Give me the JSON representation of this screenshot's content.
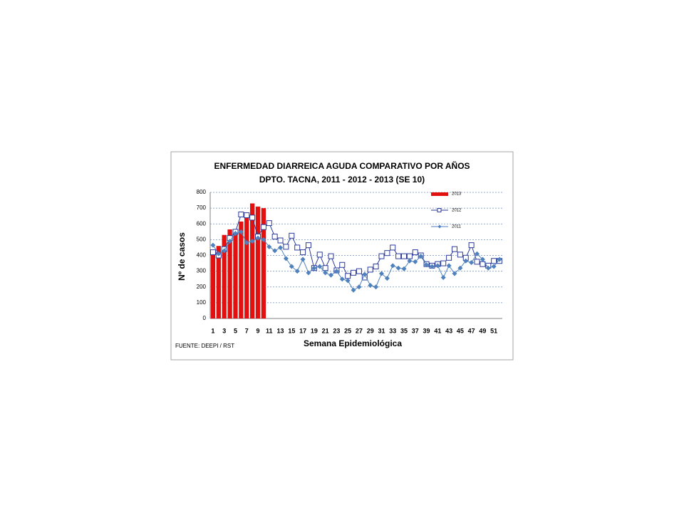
{
  "chart_data": {
    "type": "bar",
    "title": "ENFERMEDAD DIARREICA AGUDA  COMPARATIVO POR  AÑOS",
    "subtitle": "DPTO. TACNA, 2011 - 2012 - 2013 (SE  10)",
    "x_label": "Semana Epidemiológica",
    "y_label": "Nº de casos",
    "source": "FUENTE: DEEPI  / RST",
    "categories": [
      1,
      null,
      3,
      null,
      5,
      null,
      7,
      null,
      9,
      null,
      11,
      null,
      13,
      null,
      15,
      null,
      17,
      null,
      19,
      null,
      21,
      null,
      23,
      null,
      25,
      null,
      27,
      null,
      29,
      null,
      31,
      null,
      33,
      null,
      35,
      null,
      37,
      null,
      39,
      null,
      41,
      null,
      43,
      null,
      45,
      null,
      47,
      null,
      49,
      null,
      51,
      null
    ],
    "ylim": [
      0,
      800
    ],
    "yticks": [
      0,
      100,
      200,
      300,
      400,
      500,
      600,
      700,
      800
    ],
    "grid": true,
    "legend": "top-right",
    "series": [
      {
        "name": "2013",
        "type": "bar",
        "color": "#e31010",
        "values": [
          410,
          460,
          530,
          565,
          545,
          615,
          655,
          730,
          710,
          700,
          null,
          null,
          null,
          null,
          null,
          null,
          null,
          null,
          null,
          null,
          null,
          null,
          null,
          null,
          null,
          null,
          null,
          null,
          null,
          null,
          null,
          null,
          null,
          null,
          null,
          null,
          null,
          null,
          null,
          null,
          null,
          null,
          null,
          null,
          null,
          null,
          null,
          null,
          null,
          null,
          null,
          null
        ]
      },
      {
        "name": "2012",
        "type": "line",
        "marker": "square",
        "color": "#2b3a9a",
        "values": [
          420,
          400,
          440,
          510,
          550,
          660,
          655,
          640,
          520,
          580,
          605,
          520,
          495,
          455,
          525,
          450,
          420,
          465,
          320,
          405,
          320,
          395,
          305,
          340,
          270,
          290,
          300,
          260,
          310,
          330,
          395,
          415,
          450,
          395,
          395,
          395,
          420,
          400,
          345,
          335,
          345,
          350,
          385,
          440,
          405,
          385,
          465,
          360,
          345,
          335,
          365,
          365
        ]
      },
      {
        "name": "2011",
        "type": "line",
        "marker": "diamond",
        "color": "#4f81bd",
        "values": [
          465,
          410,
          430,
          490,
          540,
          550,
          480,
          490,
          510,
          500,
          455,
          430,
          450,
          380,
          330,
          300,
          375,
          290,
          320,
          330,
          290,
          275,
          300,
          250,
          240,
          180,
          200,
          280,
          210,
          200,
          285,
          255,
          335,
          320,
          315,
          365,
          360,
          395,
          340,
          330,
          335,
          260,
          335,
          285,
          320,
          365,
          355,
          410,
          375,
          320,
          330,
          375
        ]
      }
    ]
  }
}
